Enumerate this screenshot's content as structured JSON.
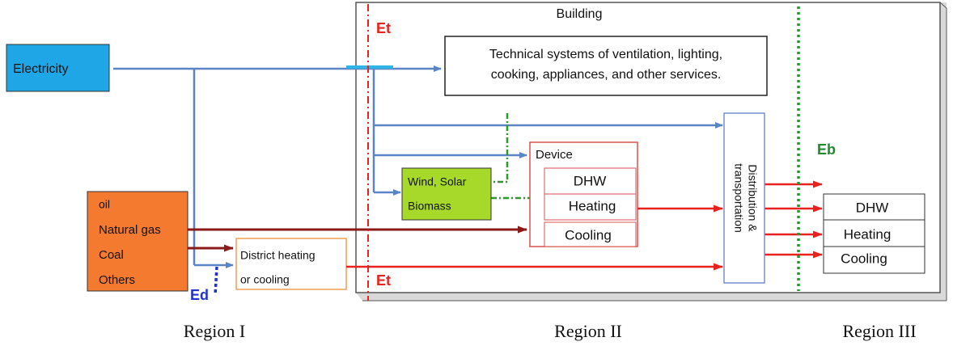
{
  "building_label": "Building",
  "sources": {
    "electricity": "Electricity",
    "fossil": [
      "oil",
      "Natural gas",
      "Coal",
      "Others"
    ],
    "district": [
      "District heating",
      "or cooling"
    ]
  },
  "technical_systems": [
    "Technical systems of ventilation, lighting,",
    "cooking, appliances, and other services."
  ],
  "renewables": [
    "Wind, Solar",
    "Biomass"
  ],
  "device": {
    "title": "Device",
    "items": [
      "DHW",
      "Heating",
      "Cooling"
    ]
  },
  "distribution": [
    "Distribution &",
    "transportation"
  ],
  "end_uses": [
    "DHW",
    "Heating",
    "Cooling"
  ],
  "boundaries": {
    "et": [
      "Et",
      "Et"
    ],
    "eb": "Eb",
    "ed": "Ed"
  },
  "regions": [
    "Region I",
    "Region II",
    "Region III"
  ]
}
